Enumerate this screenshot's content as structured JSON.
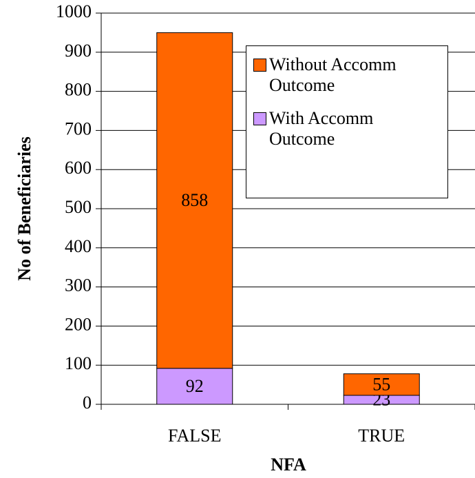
{
  "chart_data": {
    "type": "stacked_bar",
    "x_label": "NFA",
    "y_label": "No of Beneficiaries",
    "categories": [
      "FALSE",
      "TRUE"
    ],
    "series": [
      {
        "name": "With Accomm Outcome",
        "color": "#cc99ff",
        "values": [
          92,
          23
        ]
      },
      {
        "name": "Without Accomm Outcome",
        "color": "#ff6600",
        "values": [
          858,
          55
        ]
      }
    ],
    "ylim": [
      0,
      1000
    ],
    "yticks": [
      0,
      100,
      200,
      300,
      400,
      500,
      600,
      700,
      800,
      900,
      1000
    ],
    "grid": true,
    "legend": "upper right"
  }
}
